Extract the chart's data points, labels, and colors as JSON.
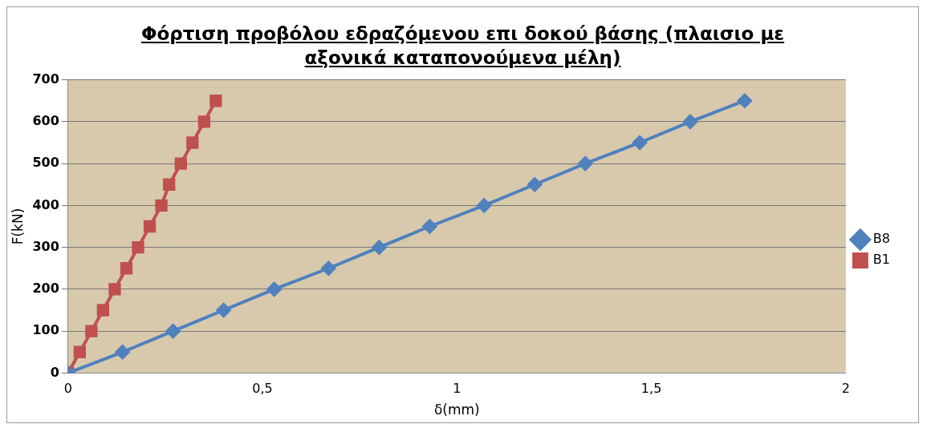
{
  "chart_data": {
    "type": "line",
    "title": "Φόρτιση προβόλου εδραζόμενου επι δοκού βάσης (πλαισιο με αξονικά καταπονούμενα μέλη)",
    "xlabel": "δ(mm)",
    "ylabel": "F(kN)",
    "xlim": [
      0,
      2
    ],
    "xticks": [
      0,
      {
        "value": 0.5,
        "label": "0,5"
      },
      1,
      {
        "value": 1.5,
        "label": "1,5"
      },
      2
    ],
    "ylim": [
      0,
      700
    ],
    "yticks": [
      0,
      100,
      200,
      300,
      400,
      500,
      600,
      700
    ],
    "grid": "y",
    "legend": "right",
    "series": [
      {
        "name": "B8",
        "color": "#4f81bd",
        "marker": "diamond",
        "x": [
          0,
          0.14,
          0.27,
          0.4,
          0.53,
          0.67,
          0.8,
          0.93,
          1.07,
          1.2,
          1.33,
          1.47,
          1.6,
          1.74
        ],
        "values": [
          0,
          50,
          100,
          150,
          200,
          250,
          300,
          350,
          400,
          450,
          500,
          550,
          600,
          650
        ]
      },
      {
        "name": "B1",
        "color": "#c0504d",
        "marker": "square",
        "x": [
          0,
          0.03,
          0.06,
          0.09,
          0.12,
          0.15,
          0.18,
          0.21,
          0.24,
          0.26,
          0.29,
          0.32,
          0.35,
          0.38
        ],
        "values": [
          0,
          50,
          100,
          150,
          200,
          250,
          300,
          350,
          400,
          450,
          500,
          550,
          600,
          650
        ]
      }
    ]
  }
}
